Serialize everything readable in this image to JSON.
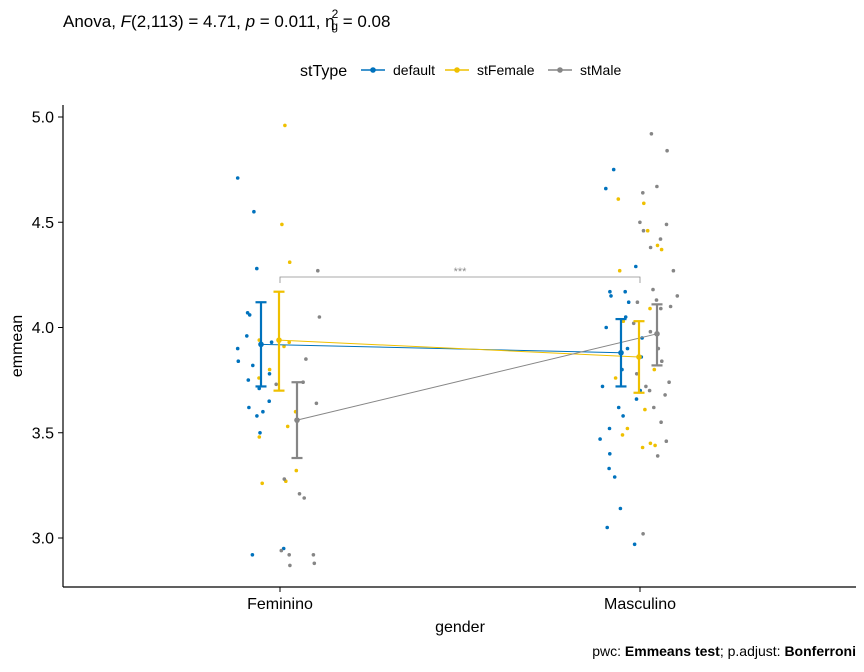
{
  "chart_data": {
    "type": "scatter",
    "title": {
      "prefix": "Anova, ",
      "F": "F",
      "df": "(2,113)",
      "f_value": " = 4.71, ",
      "p": "p",
      "p_value": " = 0.011, ",
      "eta": "η",
      "eta_sup": "2",
      "eta_sub": "g",
      "eta_value": " = 0.08"
    },
    "xlabel": "gender",
    "ylabel": "emmean",
    "categories": [
      "Feminino",
      "Masculino"
    ],
    "ylim": [
      2.78,
      5.06
    ],
    "yticks": [
      3.0,
      3.5,
      4.0,
      4.5,
      5.0
    ],
    "ytick_labels": [
      "3.0",
      "3.5",
      "4.0",
      "4.5",
      "5.0"
    ],
    "legend": {
      "title": "stType",
      "placement": "top",
      "entries": [
        "default",
        "stFemale",
        "stMale"
      ]
    },
    "colors": {
      "default": "#0072BD",
      "stFemale": "#EFC000",
      "stMale": "#868686"
    },
    "series": [
      {
        "name": "default",
        "emmean": [
          3.92,
          3.88
        ],
        "ci_low": [
          3.72,
          3.72
        ],
        "ci_high": [
          4.12,
          4.04
        ],
        "points": [
          [
            4.28,
            4.71,
            4.55,
            4.07,
            4.06,
            3.96,
            3.93,
            3.9,
            3.84,
            3.82,
            3.78,
            3.75,
            3.71,
            3.65,
            3.62,
            3.6,
            3.58,
            3.5,
            2.95,
            2.92
          ],
          [
            4.75,
            4.66,
            4.29,
            4.17,
            4.17,
            4.15,
            4.12,
            4.05,
            4.0,
            3.95,
            3.9,
            3.86,
            3.8,
            3.72,
            3.7,
            3.66,
            3.62,
            3.58,
            3.52,
            3.47,
            3.4,
            3.33,
            3.29,
            3.14,
            3.05,
            2.97
          ]
        ]
      },
      {
        "name": "stFemale",
        "emmean": [
          3.94,
          3.86
        ],
        "ci_low": [
          3.7,
          3.69
        ],
        "ci_high": [
          4.17,
          4.03
        ],
        "points": [
          [
            4.96,
            4.49,
            4.31,
            3.94,
            3.93,
            3.91,
            3.8,
            3.76,
            3.6,
            3.53,
            3.48,
            3.32,
            3.27,
            3.26
          ],
          [
            4.61,
            4.59,
            4.46,
            4.39,
            4.37,
            4.27,
            4.09,
            4.03,
            3.8,
            3.76,
            3.61,
            3.52,
            3.49,
            3.45,
            3.44,
            3.43
          ]
        ]
      },
      {
        "name": "stMale",
        "emmean": [
          3.56,
          3.97
        ],
        "ci_low": [
          3.38,
          3.82
        ],
        "ci_high": [
          3.74,
          4.11
        ],
        "points": [
          [
            4.27,
            4.05,
            3.85,
            3.74,
            3.73,
            3.64,
            3.28,
            3.21,
            3.19,
            2.94,
            2.92,
            2.92,
            2.88,
            2.87
          ],
          [
            4.92,
            4.84,
            4.67,
            4.64,
            4.5,
            4.49,
            4.46,
            4.42,
            4.38,
            4.27,
            4.18,
            4.15,
            4.13,
            4.12,
            4.1,
            4.09,
            4.02,
            3.98,
            3.9,
            3.84,
            3.78,
            3.74,
            3.72,
            3.7,
            3.68,
            3.62,
            3.55,
            3.46,
            3.39,
            3.02
          ]
        ]
      }
    ],
    "significance": {
      "label": "***",
      "y": 4.24,
      "from": "Feminino",
      "to": "Masculino"
    },
    "caption": {
      "prefix": "pwc: ",
      "test": "Emmeans test",
      "middle": "; p.adjust: ",
      "method": "Bonferroni"
    }
  }
}
